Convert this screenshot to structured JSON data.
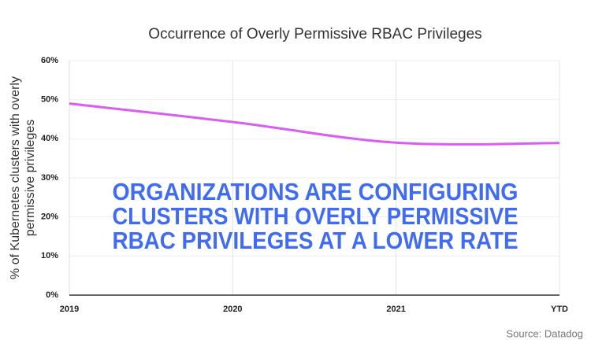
{
  "chart_data": {
    "type": "line",
    "title": "Occurrence of Overly Permissive RBAC Privileges",
    "y_label": [
      "% of Kubernetes clusters with overly",
      "permissive privileges"
    ],
    "annotation": [
      "ORGANIZATIONS ARE CONFIGURING",
      "CLUSTERS WITH OVERLY PERMISSIVE",
      "RBAC PRIVILEGES AT A LOWER RATE"
    ],
    "source": "Source: Datadog",
    "categories": [
      "2019",
      "2020",
      "2021",
      "YTD"
    ],
    "values": [
      49,
      44.3,
      39,
      38.9
    ],
    "color": "#d75ef0",
    "annotation_color": "#3f6cf2",
    "ylim": [
      0,
      60
    ],
    "yticks": [
      {
        "value": 0,
        "label": "0%"
      },
      {
        "value": 10,
        "label": "10%"
      },
      {
        "value": 20,
        "label": "20%"
      },
      {
        "value": 30,
        "label": "30%"
      },
      {
        "value": 40,
        "label": "40%"
      },
      {
        "value": 50,
        "label": "50%"
      },
      {
        "value": 60,
        "label": "60%"
      }
    ],
    "grid": true
  }
}
